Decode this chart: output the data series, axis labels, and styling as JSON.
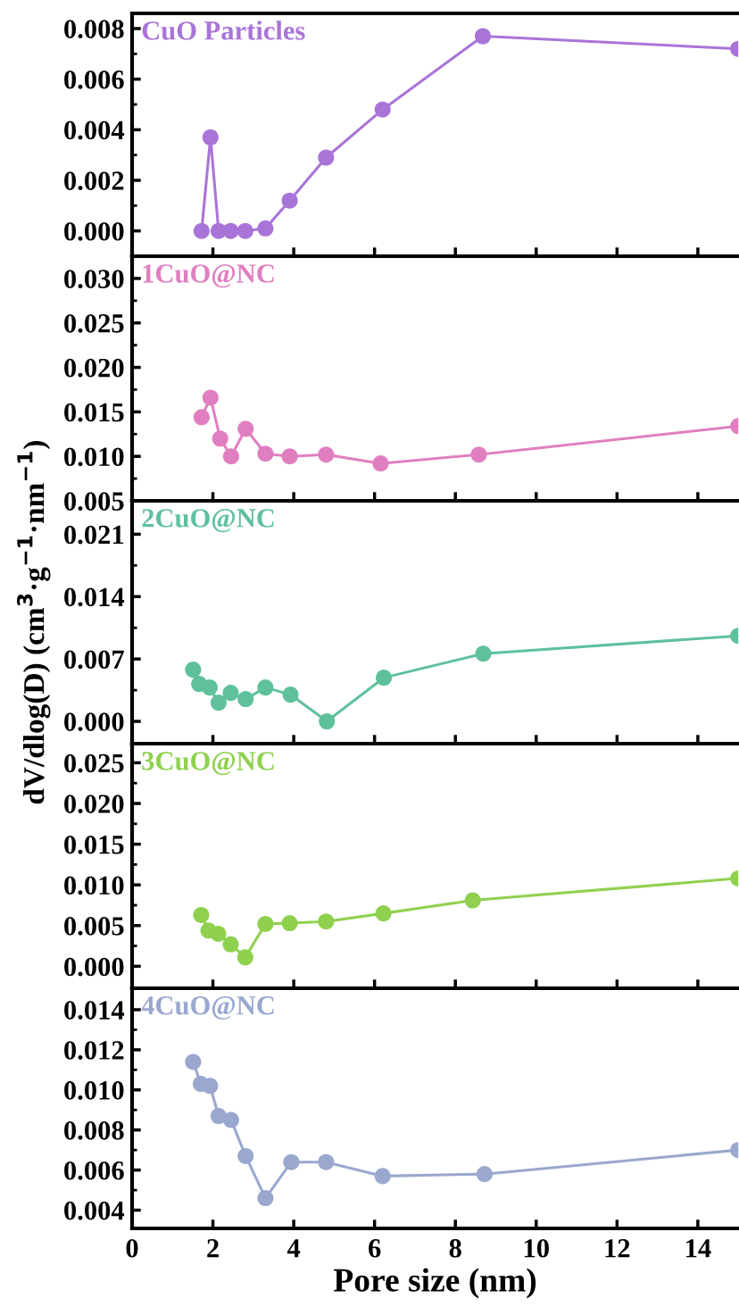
{
  "chart_data": [
    {
      "type": "line",
      "marker": "circle",
      "tick_labels": "y",
      "xlim": [
        0,
        15
      ],
      "xticks": [
        0,
        2,
        4,
        6,
        8,
        10,
        12,
        14
      ],
      "ylim": [
        -0.001,
        0.0086
      ],
      "yticks": [
        {
          "value": 0.0,
          "label": "0.000"
        },
        {
          "value": 0.001,
          "label": null
        },
        {
          "value": 0.002,
          "label": "0.002"
        },
        {
          "value": 0.003,
          "label": null
        },
        {
          "value": 0.004,
          "label": "0.004"
        },
        {
          "value": 0.005,
          "label": null
        },
        {
          "value": 0.006,
          "label": "0.006"
        },
        {
          "value": 0.007,
          "label": null
        },
        {
          "value": 0.008,
          "label": "0.008"
        }
      ],
      "series": [
        {
          "name": "CuO Particles",
          "color": "#a974d8",
          "x": [
            1.72,
            1.94,
            2.14,
            2.44,
            2.8,
            3.3,
            3.9,
            4.8,
            6.2,
            8.68,
            15
          ],
          "values": [
            0.0,
            0.0037,
            0.0,
            0.0,
            0.0,
            0.0001,
            0.0012,
            0.0029,
            0.0048,
            0.0077,
            0.0072
          ]
        }
      ]
    },
    {
      "type": "line",
      "marker": "circle",
      "tick_labels": "y",
      "xlim": [
        0,
        15
      ],
      "xticks": [
        0,
        2,
        4,
        6,
        8,
        10,
        12,
        14
      ],
      "ylim": [
        0.005,
        0.0325
      ],
      "yticks": [
        {
          "value": 0.005,
          "label": "0.005"
        },
        {
          "value": 0.0075,
          "label": null
        },
        {
          "value": 0.01,
          "label": "0.010"
        },
        {
          "value": 0.0125,
          "label": null
        },
        {
          "value": 0.015,
          "label": "0.015"
        },
        {
          "value": 0.0175,
          "label": null
        },
        {
          "value": 0.02,
          "label": "0.020"
        },
        {
          "value": 0.0225,
          "label": null
        },
        {
          "value": 0.025,
          "label": "0.025"
        },
        {
          "value": 0.0275,
          "label": null
        },
        {
          "value": 0.03,
          "label": "0.030"
        }
      ],
      "series": [
        {
          "name": "1CuO@NC",
          "color": "#e07fc0",
          "x": [
            1.72,
            1.94,
            2.18,
            2.45,
            2.81,
            3.3,
            3.9,
            4.8,
            6.15,
            8.58,
            15
          ],
          "values": [
            0.0144,
            0.0166,
            0.012,
            0.01,
            0.0131,
            0.0103,
            0.01,
            0.0102,
            0.0092,
            0.0102,
            0.0134
          ]
        }
      ]
    },
    {
      "type": "line",
      "marker": "circle",
      "tick_labels": "y",
      "xlim": [
        0,
        15
      ],
      "xticks": [
        0,
        2,
        4,
        6,
        8,
        10,
        12,
        14
      ],
      "ylim": [
        -0.0025,
        0.02475
      ],
      "ylabel": "dV/dlog(D) (cm$^{3}$·g$^{−1}$·nm$^{−1}$)",
      "yticks": [
        {
          "value": 0.0,
          "label": "0.000"
        },
        {
          "value": 0.0035,
          "label": null
        },
        {
          "value": 0.007,
          "label": "0.007"
        },
        {
          "value": 0.0105,
          "label": null
        },
        {
          "value": 0.014,
          "label": "0.014"
        },
        {
          "value": 0.0175,
          "label": null
        },
        {
          "value": 0.021,
          "label": "0.021"
        }
      ],
      "series": [
        {
          "name": "2CuO@NC",
          "color": "#5fc19c",
          "x": [
            1.51,
            1.66,
            1.92,
            2.14,
            2.44,
            2.81,
            3.3,
            3.92,
            4.82,
            6.23,
            8.69,
            15
          ],
          "values": [
            0.0058,
            0.0042,
            0.0038,
            0.0021,
            0.0032,
            0.0025,
            0.0038,
            0.003,
            0.0,
            0.0049,
            0.0076,
            0.0096
          ]
        }
      ]
    },
    {
      "type": "line",
      "marker": "circle",
      "tick_labels": "y",
      "xlim": [
        0,
        15
      ],
      "xticks": [
        0,
        2,
        4,
        6,
        8,
        10,
        12,
        14
      ],
      "ylim": [
        -0.0027,
        0.02735
      ],
      "yticks": [
        {
          "value": 0.0,
          "label": "0.000"
        },
        {
          "value": 0.0025,
          "label": null
        },
        {
          "value": 0.005,
          "label": "0.005"
        },
        {
          "value": 0.0075,
          "label": null
        },
        {
          "value": 0.01,
          "label": "0.010"
        },
        {
          "value": 0.0125,
          "label": null
        },
        {
          "value": 0.015,
          "label": "0.015"
        },
        {
          "value": 0.0175,
          "label": null
        },
        {
          "value": 0.02,
          "label": "0.020"
        },
        {
          "value": 0.0225,
          "label": null
        },
        {
          "value": 0.025,
          "label": "0.025"
        }
      ],
      "series": [
        {
          "name": "3CuO@NC",
          "color": "#8fd14f",
          "x": [
            1.71,
            1.89,
            2.13,
            2.44,
            2.8,
            3.3,
            3.9,
            4.8,
            6.22,
            8.43,
            15
          ],
          "values": [
            0.0063,
            0.0044,
            0.004,
            0.0027,
            0.0011,
            0.0052,
            0.0053,
            0.0055,
            0.0065,
            0.0081,
            0.0108
          ]
        }
      ]
    },
    {
      "type": "line",
      "marker": "circle",
      "xlim": [
        0,
        15
      ],
      "xticks": [
        0,
        2,
        4,
        6,
        8,
        10,
        12,
        14
      ],
      "ylim": [
        0.00309,
        0.01507
      ],
      "xlabel": "Pore size (nm)",
      "yticks": [
        {
          "value": 0.004,
          "label": "0.004"
        },
        {
          "value": 0.005,
          "label": null
        },
        {
          "value": 0.006,
          "label": "0.006"
        },
        {
          "value": 0.007,
          "label": null
        },
        {
          "value": 0.008,
          "label": "0.008"
        },
        {
          "value": 0.009,
          "label": null
        },
        {
          "value": 0.01,
          "label": "0.010"
        },
        {
          "value": 0.011,
          "label": null
        },
        {
          "value": 0.012,
          "label": "0.012"
        },
        {
          "value": 0.013,
          "label": null
        },
        {
          "value": 0.014,
          "label": "0.014"
        }
      ],
      "series": [
        {
          "name": "4CuO@NC",
          "color": "#9aa8d0",
          "x": [
            1.51,
            1.7,
            1.93,
            2.14,
            2.45,
            2.81,
            3.3,
            3.94,
            4.8,
            6.2,
            8.72,
            15
          ],
          "values": [
            0.0114,
            0.0103,
            0.0102,
            0.0087,
            0.0085,
            0.0067,
            0.0046,
            0.0064,
            0.0064,
            0.0057,
            0.0058,
            0.007
          ]
        }
      ]
    }
  ]
}
